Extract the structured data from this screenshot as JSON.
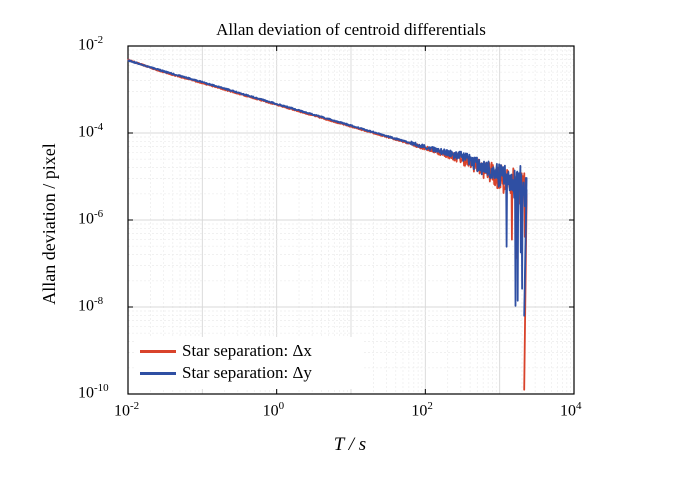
{
  "chart_data": {
    "type": "line",
    "title": "Allan deviation of centroid differentials",
    "xlabel": "T / s",
    "ylabel": "Allan deviation / pixel",
    "x_scale": "log",
    "y_scale": "log",
    "xlim": [
      0.01,
      10000
    ],
    "ylim_labels": [
      "10^-10",
      "10^-8",
      "10^-6",
      "10^-4",
      "10^-2"
    ],
    "x_ticks": [
      {
        "base": "10",
        "exp": "-2"
      },
      {
        "base": "10",
        "exp": "0"
      },
      {
        "base": "10",
        "exp": "2"
      },
      {
        "base": "10",
        "exp": "4"
      }
    ],
    "y_ticks": [
      {
        "base": "10",
        "exp": "-2"
      },
      {
        "base": "10",
        "exp": "-4"
      },
      {
        "base": "10",
        "exp": "-6"
      },
      {
        "base": "10",
        "exp": "-8"
      },
      {
        "base": "10",
        "exp": "-10"
      }
    ],
    "y_tick_decades": [
      -2,
      -4,
      -6,
      -8,
      -10
    ],
    "grid": true,
    "legend_position": "bottom-left",
    "series": [
      {
        "name": "Star separation: Δx",
        "color": "#d9432b",
        "trend": {
          "T": [
            0.01,
            0.03,
            0.1,
            1,
            10,
            100,
            300,
            600,
            1000,
            1500,
            2000,
            2300
          ],
          "log10_dev": [
            -2.32,
            -2.6,
            -2.85,
            -3.35,
            -3.85,
            -4.35,
            -4.6,
            -4.85,
            -5.05,
            -5.2,
            -5.3,
            -5.4
          ]
        },
        "noise_onset_T": 60,
        "min_log10_dev": -9.9,
        "end_T": 2300
      },
      {
        "name": "Star separation: Δy",
        "color": "#2f4fa3",
        "trend": {
          "T": [
            0.01,
            0.03,
            0.1,
            1,
            10,
            100,
            300,
            600,
            1000,
            1500,
            2000,
            2300
          ],
          "log10_dev": [
            -2.33,
            -2.58,
            -2.83,
            -3.33,
            -3.83,
            -4.33,
            -4.55,
            -4.8,
            -5.0,
            -5.15,
            -5.25,
            -5.3
          ]
        },
        "noise_onset_T": 60,
        "min_log10_dev": -8.2,
        "end_T": 2300
      }
    ]
  }
}
